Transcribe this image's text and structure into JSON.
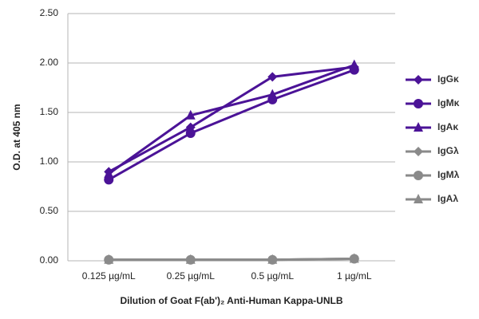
{
  "chart_data": {
    "type": "line",
    "x_label": "Dilution of Goat F(ab')₂ Anti-Human Kappa-UNLB",
    "y_label": "O.D. at 405 nm",
    "categories": [
      "0.125 µg/mL",
      "0.25 µg/mL",
      "0.5 µg/mL",
      "1 µg/mL"
    ],
    "series": [
      {
        "name": "IgGκ",
        "color": "#4b1397",
        "marker": "diamond",
        "values": [
          0.9,
          1.35,
          1.86,
          1.96
        ]
      },
      {
        "name": "IgMκ",
        "color": "#4b1397",
        "marker": "circle",
        "values": [
          0.82,
          1.29,
          1.63,
          1.93
        ]
      },
      {
        "name": "IgAκ",
        "color": "#4b1397",
        "marker": "triangle",
        "values": [
          0.88,
          1.47,
          1.68,
          1.98
        ]
      },
      {
        "name": "IgGλ",
        "color": "#8a8a8a",
        "marker": "diamond",
        "values": [
          0.01,
          0.01,
          0.01,
          0.02
        ]
      },
      {
        "name": "IgMλ",
        "color": "#8a8a8a",
        "marker": "circle",
        "values": [
          0.01,
          0.01,
          0.01,
          0.02
        ]
      },
      {
        "name": "IgAλ",
        "color": "#8a8a8a",
        "marker": "triangle",
        "values": [
          0.01,
          0.01,
          0.01,
          0.02
        ]
      }
    ],
    "ylim": [
      0,
      2.5
    ],
    "yticks": [
      {
        "value": 0,
        "label": "0.00"
      },
      {
        "value": 0.5,
        "label": "0.50"
      },
      {
        "value": 1,
        "label": "1.00"
      },
      {
        "value": 1.5,
        "label": "1.50"
      },
      {
        "value": 2,
        "label": "2.00"
      },
      {
        "value": 2.5,
        "label": "2.50"
      }
    ],
    "grid": true
  }
}
